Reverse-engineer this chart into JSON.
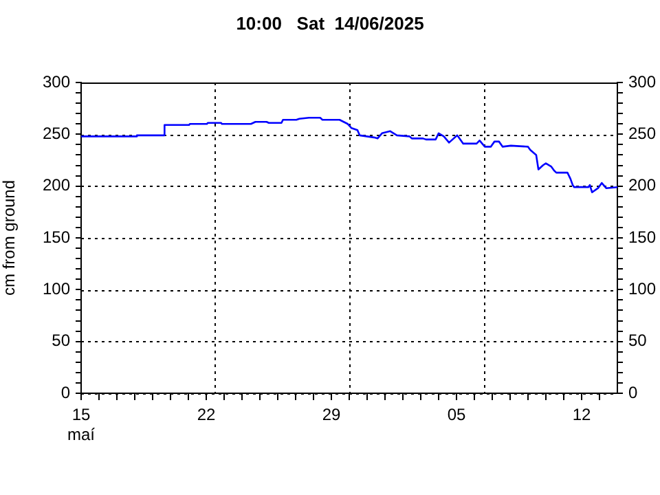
{
  "chart_data": {
    "type": "line",
    "title": "10:00   Sat  14/06/2025",
    "ylabel": "cm from ground",
    "series": [
      {
        "color": "#0000ff",
        "x": [
          "2025-05-15T00:00",
          "2025-05-18T02:00",
          "2025-05-18T03:00",
          "2025-05-19T15:00",
          "2025-05-19T16:00",
          "2025-05-21T01:00",
          "2025-05-21T02:00",
          "2025-05-22T01:00",
          "2025-05-22T02:00",
          "2025-05-22T20:00",
          "2025-05-22T21:00",
          "2025-05-24T12:00",
          "2025-05-24T18:00",
          "2025-05-25T09:00",
          "2025-05-25T12:00",
          "2025-05-26T05:00",
          "2025-05-26T07:00",
          "2025-05-27T01:00",
          "2025-05-27T05:00",
          "2025-05-27T18:00",
          "2025-05-28T09:00",
          "2025-05-28T12:00",
          "2025-05-29T11:00",
          "2025-05-29T22:00",
          "2025-05-30T03:00",
          "2025-05-30T11:00",
          "2025-05-30T14:00",
          "2025-05-31T09:00",
          "2025-05-31T14:00",
          "2025-05-31T20:00",
          "2025-06-01T07:00",
          "2025-06-01T16:00",
          "2025-06-02T09:00",
          "2025-06-02T12:00",
          "2025-06-03T03:00",
          "2025-06-03T07:00",
          "2025-06-03T20:00",
          "2025-06-04T00:00",
          "2025-06-04T07:00",
          "2025-06-04T14:00",
          "2025-06-05T01:00",
          "2025-06-05T09:00",
          "2025-06-06T03:00",
          "2025-06-06T07:00",
          "2025-06-06T14:00",
          "2025-06-06T22:00",
          "2025-06-07T03:00",
          "2025-06-07T09:00",
          "2025-06-07T14:00",
          "2025-06-08T01:00",
          "2025-06-09T00:00",
          "2025-06-09T03:00",
          "2025-06-09T11:00",
          "2025-06-09T14:00",
          "2025-06-09T20:00",
          "2025-06-10T00:00",
          "2025-06-10T07:00",
          "2025-06-10T11:00",
          "2025-06-10T14:00",
          "2025-06-11T05:00",
          "2025-06-11T09:00",
          "2025-06-11T12:00",
          "2025-06-11T14:00",
          "2025-06-12T09:00",
          "2025-06-12T11:00",
          "2025-06-12T14:00",
          "2025-06-12T22:00",
          "2025-06-13T03:00",
          "2025-06-13T09:00",
          "2025-06-14T00:00"
        ],
        "values": [
          248,
          248,
          249,
          249,
          259,
          259,
          260,
          260,
          261,
          261,
          260,
          260,
          262,
          262,
          261,
          261,
          264,
          264,
          265,
          266,
          266,
          264,
          264,
          260,
          256,
          254,
          249,
          247,
          246,
          251,
          253,
          249,
          248,
          246,
          246,
          245,
          245,
          251,
          248,
          242,
          249,
          241,
          241,
          244,
          238,
          238,
          243,
          243,
          238,
          239,
          238,
          235,
          230,
          216,
          220,
          222,
          219,
          215,
          213,
          213,
          207,
          201,
          199,
          199,
          201,
          194,
          198,
          203,
          198,
          199
        ]
      }
    ],
    "xlim": [
      "2025-05-15",
      "2025-06-14"
    ],
    "xticks": [
      {
        "value": "2025-05-15",
        "label": "15\nmaí"
      },
      {
        "value": "2025-05-16",
        "label": null
      },
      {
        "value": "2025-05-17",
        "label": null
      },
      {
        "value": "2025-05-18",
        "label": null
      },
      {
        "value": "2025-05-19",
        "label": null
      },
      {
        "value": "2025-05-20",
        "label": null
      },
      {
        "value": "2025-05-21",
        "label": null
      },
      {
        "value": "2025-05-22",
        "label": "22"
      },
      {
        "value": "2025-05-23",
        "label": null
      },
      {
        "value": "2025-05-24",
        "label": null
      },
      {
        "value": "2025-05-25",
        "label": null
      },
      {
        "value": "2025-05-26",
        "label": null
      },
      {
        "value": "2025-05-27",
        "label": null
      },
      {
        "value": "2025-05-28",
        "label": null
      },
      {
        "value": "2025-05-29",
        "label": "29"
      },
      {
        "value": "2025-05-30",
        "label": null
      },
      {
        "value": "2025-05-31",
        "label": null
      },
      {
        "value": "2025-06-01",
        "label": null
      },
      {
        "value": "2025-06-02",
        "label": null
      },
      {
        "value": "2025-06-03",
        "label": null
      },
      {
        "value": "2025-06-04",
        "label": null
      },
      {
        "value": "2025-06-05",
        "label": "05"
      },
      {
        "value": "2025-06-06",
        "label": null
      },
      {
        "value": "2025-06-07",
        "label": null
      },
      {
        "value": "2025-06-08",
        "label": null
      },
      {
        "value": "2025-06-09",
        "label": null
      },
      {
        "value": "2025-06-10",
        "label": null
      },
      {
        "value": "2025-06-11",
        "label": null
      },
      {
        "value": "2025-06-12",
        "label": "12"
      },
      {
        "value": "2025-06-13",
        "label": null
      }
    ],
    "ylim": [
      0,
      300
    ],
    "yticks": [
      0,
      {
        "value": 10,
        "label": null
      },
      {
        "value": 20,
        "label": null
      },
      {
        "value": 30,
        "label": null
      },
      {
        "value": 40,
        "label": null
      },
      50,
      {
        "value": 60,
        "label": null
      },
      {
        "value": 70,
        "label": null
      },
      {
        "value": 80,
        "label": null
      },
      {
        "value": 90,
        "label": null
      },
      100,
      {
        "value": 110,
        "label": null
      },
      {
        "value": 120,
        "label": null
      },
      {
        "value": 130,
        "label": null
      },
      {
        "value": 140,
        "label": null
      },
      150,
      {
        "value": 160,
        "label": null
      },
      {
        "value": 170,
        "label": null
      },
      {
        "value": 180,
        "label": null
      },
      {
        "value": 190,
        "label": null
      },
      200,
      {
        "value": 210,
        "label": null
      },
      {
        "value": 220,
        "label": null
      },
      {
        "value": 230,
        "label": null
      },
      {
        "value": 240,
        "label": null
      },
      250,
      {
        "value": 260,
        "label": null
      },
      {
        "value": 270,
        "label": null
      },
      {
        "value": 280,
        "label": null
      },
      {
        "value": 290,
        "label": null
      },
      300
    ],
    "y2lim": [
      0,
      300
    ],
    "y2ticks": [
      0,
      {
        "value": 10,
        "label": null
      },
      {
        "value": 20,
        "label": null
      },
      {
        "value": 30,
        "label": null
      },
      {
        "value": 40,
        "label": null
      },
      50,
      {
        "value": 60,
        "label": null
      },
      {
        "value": 70,
        "label": null
      },
      {
        "value": 80,
        "label": null
      },
      {
        "value": 90,
        "label": null
      },
      100,
      {
        "value": 110,
        "label": null
      },
      {
        "value": 120,
        "label": null
      },
      {
        "value": 130,
        "label": null
      },
      {
        "value": 140,
        "label": null
      },
      150,
      {
        "value": 160,
        "label": null
      },
      {
        "value": 170,
        "label": null
      },
      {
        "value": 180,
        "label": null
      },
      {
        "value": 190,
        "label": null
      },
      200,
      {
        "value": 210,
        "label": null
      },
      {
        "value": 220,
        "label": null
      },
      {
        "value": 230,
        "label": null
      },
      {
        "value": 240,
        "label": null
      },
      250,
      {
        "value": 260,
        "label": null
      },
      {
        "value": 270,
        "label": null
      },
      {
        "value": 280,
        "label": null
      },
      {
        "value": 290,
        "label": null
      },
      300
    ],
    "grid": "y",
    "ref_lines": [
      {
        "axis": "x",
        "value": "2025-05-22T11:00",
        "color": "#000000",
        "line_style": "dotted"
      },
      {
        "axis": "x",
        "value": "2025-05-30T00:00",
        "color": "#000000",
        "line_style": "dotted"
      },
      {
        "axis": "x",
        "value": "2025-06-06T13:00",
        "color": "#000000",
        "line_style": "dotted"
      }
    ]
  }
}
